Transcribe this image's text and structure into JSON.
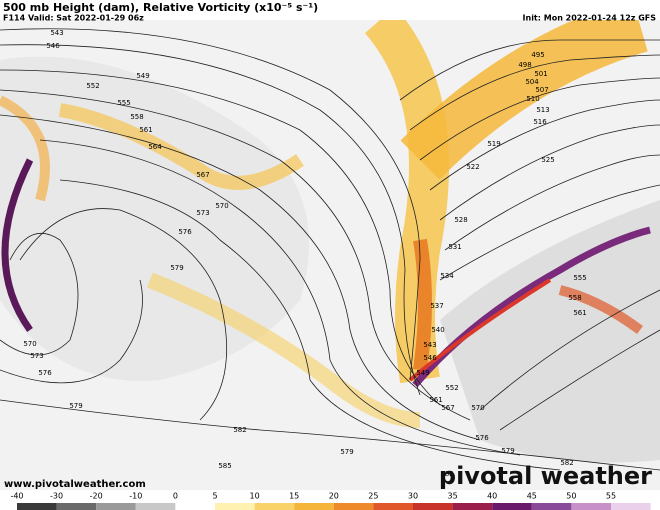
{
  "header": {
    "title": "500 mb Height (dam), Relative Vorticity (x10⁻⁵ s⁻¹)",
    "valid": "F114 Valid: Sat 2022-01-29 06z",
    "init": "Init: Mon 2022-01-24 12z GFS"
  },
  "contour_labels": [
    "543",
    "546",
    "549",
    "552",
    "555",
    "558",
    "561",
    "564",
    "567",
    "570",
    "573",
    "576",
    "579",
    "570",
    "573",
    "576",
    "579",
    "582",
    "585",
    "495",
    "498",
    "501",
    "504",
    "507",
    "510",
    "513",
    "516",
    "519",
    "522",
    "525",
    "528",
    "531",
    "534",
    "537",
    "540",
    "543",
    "546",
    "549",
    "552",
    "561",
    "567",
    "570",
    "576",
    "579",
    "582",
    "582",
    "579",
    "555",
    "558",
    "561"
  ],
  "footer": {
    "url": "www.pivotalweather.com",
    "brand": "pivotal weather"
  },
  "colorbar": {
    "ticks": [
      -40,
      -30,
      -20,
      -10,
      0,
      5,
      10,
      15,
      20,
      25,
      30,
      35,
      40,
      45,
      50,
      55
    ]
  }
}
